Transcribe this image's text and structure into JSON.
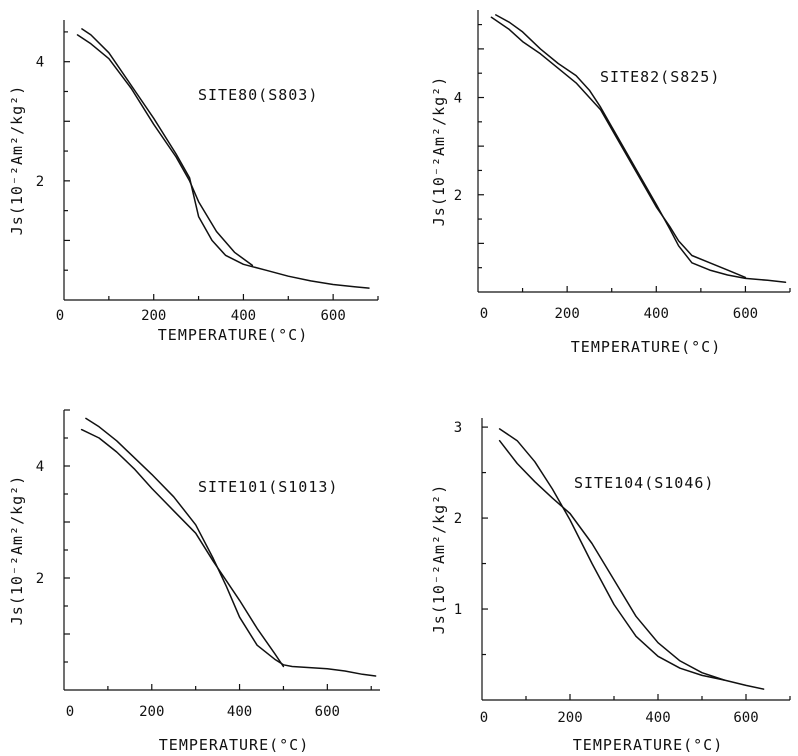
{
  "chart_data": [
    {
      "type": "line",
      "title": "SITE80(S803)",
      "xlabel": "TEMPERATURE(°C)",
      "ylabel": "Js(10⁻²Am²/kg²)",
      "xlim": [
        0,
        700
      ],
      "ylim": [
        0,
        4.7
      ],
      "xticks": [
        "0",
        "200",
        "400",
        "600"
      ],
      "yticks": [
        "2",
        "4"
      ],
      "series": [
        {
          "x": [
            40,
            60,
            100,
            150,
            200,
            250,
            280,
            300,
            330,
            360,
            400,
            450,
            500,
            550,
            600,
            650,
            680
          ],
          "y": [
            4.55,
            4.45,
            4.15,
            3.6,
            3.05,
            2.45,
            2.05,
            1.4,
            1.0,
            0.75,
            0.6,
            0.5,
            0.4,
            0.32,
            0.26,
            0.22,
            0.2
          ]
        },
        {
          "x": [
            30,
            60,
            100,
            150,
            200,
            250,
            280,
            300,
            340,
            380,
            420
          ],
          "y": [
            4.45,
            4.3,
            4.05,
            3.55,
            2.95,
            2.4,
            2.0,
            1.65,
            1.15,
            0.8,
            0.58
          ]
        }
      ]
    },
    {
      "type": "line",
      "title": "SITE82(S825)",
      "xlabel": "TEMPERATURE(°C)",
      "ylabel": "Js(10⁻²Am²/kg²)",
      "xlim": [
        0,
        700
      ],
      "ylim": [
        0,
        5.8
      ],
      "xticks": [
        "0",
        "200",
        "400",
        "600"
      ],
      "yticks": [
        "2",
        "4"
      ],
      "series": [
        {
          "x": [
            40,
            70,
            100,
            140,
            180,
            220,
            250,
            275,
            300,
            350,
            400,
            430,
            450,
            480,
            520,
            560,
            600,
            650,
            690
          ],
          "y": [
            5.7,
            5.55,
            5.35,
            5.0,
            4.7,
            4.45,
            4.15,
            3.8,
            3.4,
            2.6,
            1.8,
            1.3,
            0.95,
            0.6,
            0.45,
            0.35,
            0.28,
            0.24,
            0.2
          ]
        },
        {
          "x": [
            30,
            70,
            100,
            140,
            180,
            220,
            250,
            275,
            300,
            350,
            400,
            430,
            450,
            480,
            520,
            560,
            600
          ],
          "y": [
            5.65,
            5.4,
            5.15,
            4.9,
            4.6,
            4.3,
            4.0,
            3.75,
            3.35,
            2.55,
            1.75,
            1.35,
            1.05,
            0.75,
            0.6,
            0.45,
            0.3
          ]
        }
      ]
    },
    {
      "type": "line",
      "title": "SITE101(S1013)",
      "xlabel": "TEMPERATURE(°C)",
      "ylabel": "Js(10⁻²Am²/kg²)",
      "xlim": [
        0,
        720
      ],
      "ylim": [
        0,
        5.0
      ],
      "xticks": [
        "0",
        "200",
        "400",
        "600"
      ],
      "yticks": [
        "2",
        "4"
      ],
      "series": [
        {
          "x": [
            50,
            80,
            120,
            160,
            200,
            250,
            300,
            340,
            370,
            400,
            440,
            480,
            500,
            520,
            560,
            600,
            640,
            680,
            710
          ],
          "y": [
            4.85,
            4.7,
            4.45,
            4.15,
            3.85,
            3.45,
            2.95,
            2.35,
            1.85,
            1.3,
            0.8,
            0.55,
            0.45,
            0.42,
            0.4,
            0.38,
            0.34,
            0.28,
            0.25
          ]
        },
        {
          "x": [
            40,
            80,
            120,
            160,
            200,
            250,
            300,
            340,
            370,
            400,
            440,
            480,
            500
          ],
          "y": [
            4.65,
            4.5,
            4.25,
            3.95,
            3.6,
            3.2,
            2.8,
            2.3,
            1.95,
            1.6,
            1.1,
            0.65,
            0.42
          ]
        }
      ]
    },
    {
      "type": "line",
      "title": "SITE104(S1046)",
      "xlabel": "TEMPERATURE(°C)",
      "ylabel": "Js(10⁻²Am²/kg²)",
      "xlim": [
        0,
        700
      ],
      "ylim": [
        0,
        3.1
      ],
      "xticks": [
        "0",
        "200",
        "400",
        "600"
      ],
      "yticks": [
        "1",
        "2",
        "3"
      ],
      "series": [
        {
          "x": [
            40,
            80,
            120,
            160,
            200,
            250,
            300,
            350,
            400,
            450,
            500,
            550,
            600,
            640
          ],
          "y": [
            2.98,
            2.85,
            2.62,
            2.32,
            1.98,
            1.5,
            1.05,
            0.7,
            0.48,
            0.35,
            0.27,
            0.22,
            0.16,
            0.12
          ]
        },
        {
          "x": [
            40,
            80,
            120,
            160,
            200,
            250,
            300,
            350,
            400,
            450,
            500,
            550
          ],
          "y": [
            2.85,
            2.6,
            2.4,
            2.22,
            2.05,
            1.72,
            1.32,
            0.92,
            0.63,
            0.43,
            0.3,
            0.22
          ]
        }
      ]
    }
  ]
}
